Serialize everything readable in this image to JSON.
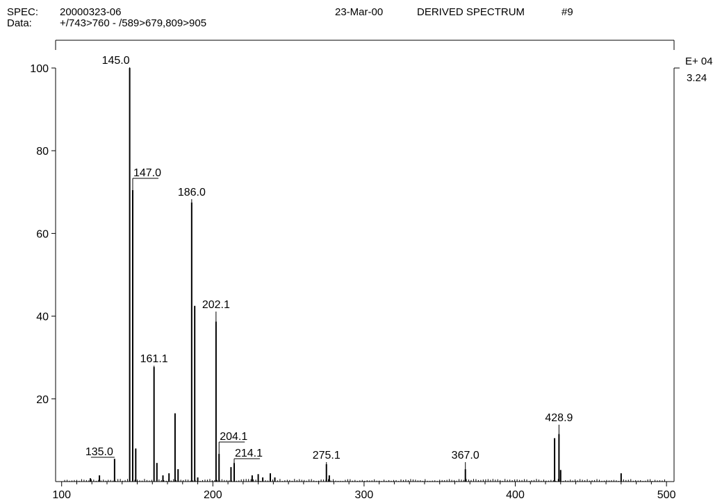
{
  "header": {
    "spec_label": "SPEC:",
    "spec_value": "20000323-06",
    "data_label": "Data:",
    "data_value": "+/743>760 - /589>679,809>905",
    "date": "23-Mar-00",
    "title": "DERIVED SPECTRUM",
    "scan": "#9"
  },
  "chart_data": {
    "type": "bar",
    "title": "DERIVED SPECTRUM",
    "xlim": [
      96,
      505
    ],
    "ylim": [
      0,
      100
    ],
    "x_ticks": [
      100,
      200,
      300,
      400,
      500
    ],
    "y_ticks": [
      20,
      40,
      60,
      80,
      100
    ],
    "scale_exponent": "E+ 04",
    "scale_value": "3.24",
    "grid": false,
    "peaks": [
      {
        "x": 135.0,
        "y": 5.5,
        "label": "135.0"
      },
      {
        "x": 145.0,
        "y": 100,
        "label": "145.0"
      },
      {
        "x": 147.0,
        "y": 70.5,
        "label": "147.0"
      },
      {
        "x": 149.0,
        "y": 8
      },
      {
        "x": 161.1,
        "y": 27.7,
        "label": "161.1"
      },
      {
        "x": 163.0,
        "y": 4.5
      },
      {
        "x": 167.0,
        "y": 1.5
      },
      {
        "x": 171.0,
        "y": 2
      },
      {
        "x": 175.0,
        "y": 16.5
      },
      {
        "x": 177.0,
        "y": 3
      },
      {
        "x": 186.0,
        "y": 67.5,
        "label": "186.0"
      },
      {
        "x": 188.0,
        "y": 42.5
      },
      {
        "x": 190.0,
        "y": 1
      },
      {
        "x": 202.1,
        "y": 38.7,
        "label": "202.1"
      },
      {
        "x": 204.1,
        "y": 6.7,
        "label": "204.1"
      },
      {
        "x": 212.0,
        "y": 3.5
      },
      {
        "x": 214.1,
        "y": 4.5,
        "label": "214.1"
      },
      {
        "x": 226.0,
        "y": 1.5
      },
      {
        "x": 230.0,
        "y": 1.8
      },
      {
        "x": 233.0,
        "y": 1
      },
      {
        "x": 238.0,
        "y": 2
      },
      {
        "x": 241.0,
        "y": 1
      },
      {
        "x": 125.0,
        "y": 1.5
      },
      {
        "x": 119.0,
        "y": 0.8
      },
      {
        "x": 275.1,
        "y": 4.2,
        "label": "275.1"
      },
      {
        "x": 277.0,
        "y": 1.5
      },
      {
        "x": 367.0,
        "y": 3,
        "label": "367.0"
      },
      {
        "x": 426.0,
        "y": 10.5
      },
      {
        "x": 428.9,
        "y": 11.5,
        "label": "428.9"
      },
      {
        "x": 430.0,
        "y": 2.8
      },
      {
        "x": 470.0,
        "y": 2
      }
    ]
  }
}
